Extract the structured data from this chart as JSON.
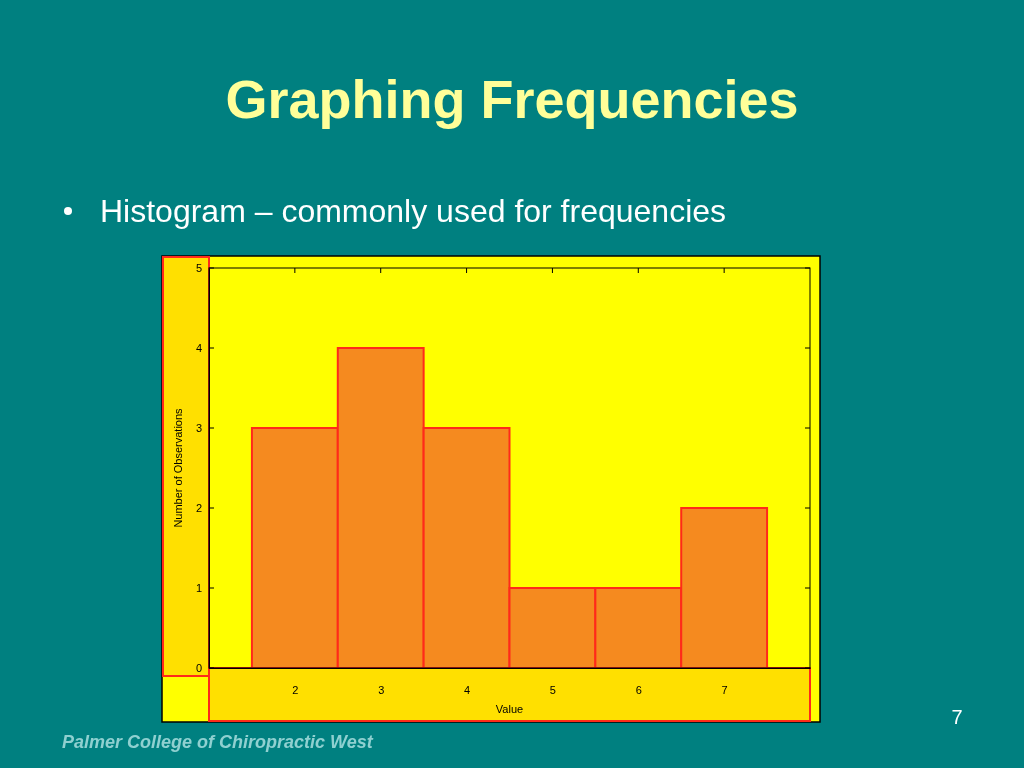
{
  "chart_data": {
    "type": "histogram",
    "title": "Graphing Frequencies",
    "subtitle": "Histogram – commonly used for frequencies",
    "xlabel": "Value",
    "ylabel": "Number of Observations",
    "bins": [
      1.5,
      2.5,
      3.5,
      4.5,
      5.5,
      6.5,
      7.5
    ],
    "values": [
      3,
      4,
      3,
      1,
      1,
      2
    ],
    "color": "#f58a1f",
    "xlim": [
      1,
      8
    ],
    "xticks": [
      2,
      3,
      4,
      5,
      6,
      7
    ],
    "ylim": [
      0,
      5
    ],
    "yticks": [
      0,
      1,
      2,
      3,
      4,
      5
    ],
    "grid": false,
    "annotations": [
      "Palmer College of Chiropractic West",
      "7"
    ]
  }
}
